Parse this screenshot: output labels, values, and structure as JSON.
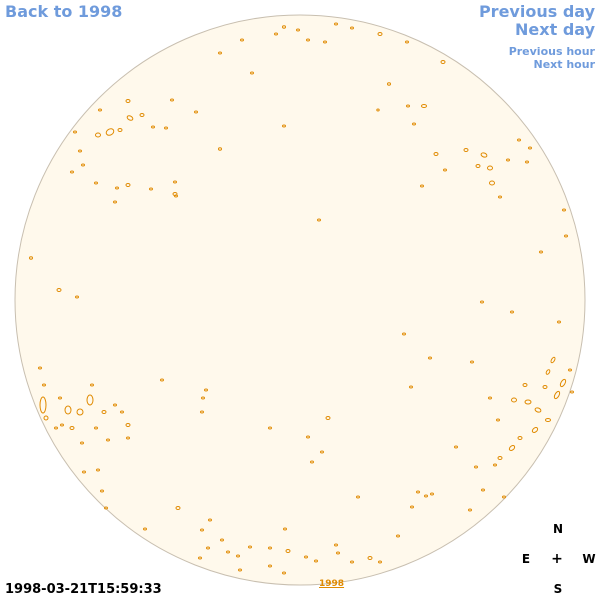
{
  "nav": {
    "back": "Back to 1998",
    "previous_day": "Previous day",
    "next_day": "Next day",
    "previous_hour": "Previous hour",
    "next_hour": "Next hour"
  },
  "timestamp": "1998-03-21T15:59:33",
  "year_mark": "1998",
  "compass": {
    "north": "N",
    "east": "E",
    "center": "+",
    "west": "W",
    "south": "S"
  },
  "colors": {
    "disk_fill": "#fff9ec",
    "disk_edge": "#c8bfb0",
    "contour": "#e08a00",
    "link": "#6f9bdc"
  }
}
